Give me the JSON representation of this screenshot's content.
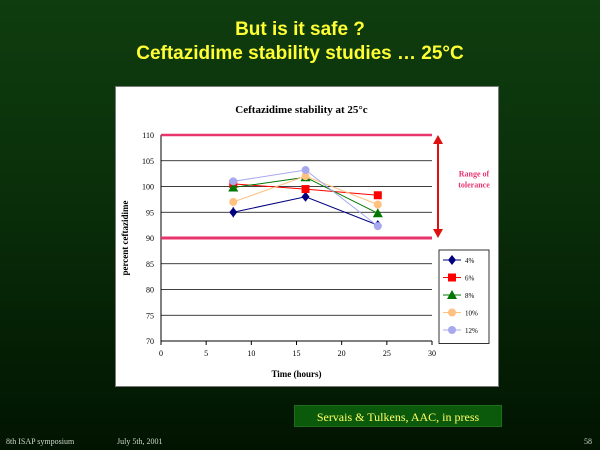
{
  "slide": {
    "title_line1": "But is it safe ?",
    "title_line2": "Ceftazidime stability studies … 25°C",
    "citation": "Servais & Tulkens, AAC, in press",
    "footer_left": "8th ISAP symposium",
    "footer_mid": "July 5th, 2001",
    "footer_right": "58",
    "title_color": "#ffff33"
  },
  "chart_data": {
    "type": "line",
    "title": "Ceftazidime stability at 25°c",
    "xlabel": "Time (hours)",
    "ylabel": "percent ceftazidime",
    "xlim": [
      0,
      30
    ],
    "ylim": [
      70,
      110
    ],
    "xticks": [
      0,
      5,
      10,
      15,
      20,
      25,
      30
    ],
    "yticks": [
      70,
      75,
      80,
      85,
      90,
      95,
      100,
      105,
      110
    ],
    "grid": "horizontal",
    "legend_position": "right",
    "tolerance": {
      "low": 90,
      "high": 110,
      "label_line1": "Range of",
      "label_line2": "tolerance",
      "color": "#e8336e",
      "arrow_color": "#e01010"
    },
    "series": [
      {
        "name": "4%",
        "color": "#000080",
        "marker": "diamond",
        "x": [
          8,
          16,
          24
        ],
        "y": [
          95,
          98,
          92.5
        ],
        "err": [
          1,
          0.6,
          0.6
        ]
      },
      {
        "name": "6%",
        "color": "#ff0000",
        "marker": "square",
        "x": [
          8,
          16,
          24
        ],
        "y": [
          100.5,
          99.5,
          98.3
        ],
        "err": [
          0.6,
          0.6,
          0.6
        ]
      },
      {
        "name": "8%",
        "color": "#007700",
        "marker": "triangle",
        "x": [
          8,
          16,
          24
        ],
        "y": [
          99.8,
          101.8,
          94.8
        ],
        "err": [
          0.6,
          0.6,
          0.5
        ]
      },
      {
        "name": "10%",
        "color": "#ffc080",
        "marker": "circle",
        "x": [
          8,
          16,
          24
        ],
        "y": [
          97,
          102,
          96.5
        ],
        "err": [
          0.4,
          0.5,
          0.4
        ]
      },
      {
        "name": "12%",
        "color": "#a8a8ee",
        "marker": "circle",
        "x": [
          8,
          16,
          24
        ],
        "y": [
          101,
          103.2,
          92.3
        ],
        "err": [
          0.5,
          0.5,
          0.5
        ]
      }
    ]
  }
}
